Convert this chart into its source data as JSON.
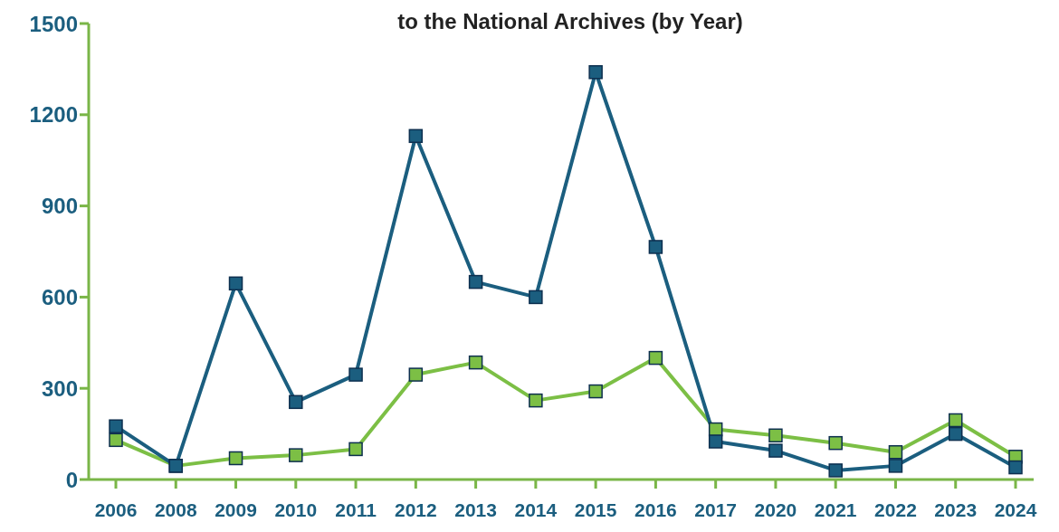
{
  "chart_data": {
    "type": "line",
    "title": "to the National Archives (by Year)",
    "categories": [
      "2006",
      "2008",
      "2009",
      "2010",
      "2011",
      "2012",
      "2013",
      "2014",
      "2015",
      "2016",
      "2017",
      "2020",
      "2021",
      "2022",
      "2023",
      "2024"
    ],
    "series": [
      {
        "color": "#1b5e7f",
        "values": [
          175,
          45,
          645,
          255,
          345,
          1130,
          650,
          600,
          1340,
          765,
          125,
          95,
          30,
          45,
          150,
          40
        ]
      },
      {
        "color": "#7cbf45",
        "values": [
          130,
          45,
          70,
          80,
          100,
          345,
          385,
          260,
          290,
          400,
          165,
          145,
          120,
          90,
          195,
          75
        ]
      }
    ],
    "ylim": [
      0,
      1500
    ],
    "yticks": [
      0,
      300,
      600,
      900,
      1200,
      1500
    ],
    "grid": false,
    "legend": false,
    "marker": "square",
    "line_style": "solid"
  }
}
